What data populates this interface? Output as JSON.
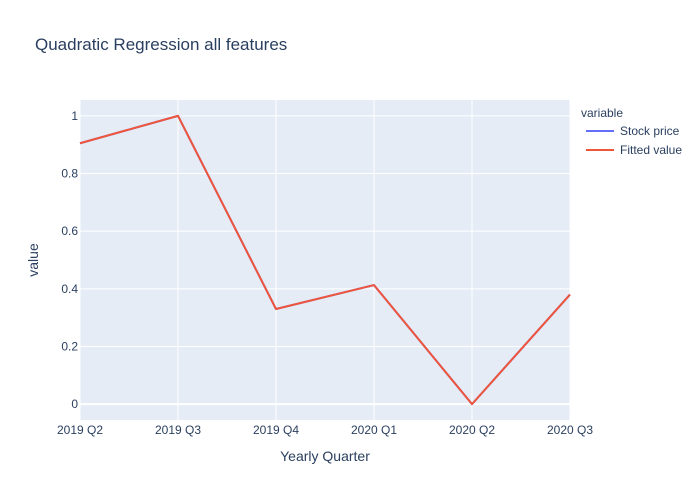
{
  "chart_data": {
    "type": "line",
    "title": "Quadratic Regression all features",
    "xlabel": "Yearly Quarter",
    "ylabel": "value",
    "categories": [
      "2019 Q2",
      "2019 Q3",
      "2019 Q4",
      "2020 Q1",
      "2020 Q2",
      "2020 Q3"
    ],
    "ylim": [
      -0.055,
      1.055
    ],
    "yticks": [
      0,
      0.2,
      0.4,
      0.6,
      0.8,
      1
    ],
    "ytick_labels": [
      "0",
      "0.2",
      "0.4",
      "0.6",
      "0.8",
      "1"
    ],
    "grid": true,
    "legend": {
      "title": "variable",
      "position": "right"
    },
    "series": [
      {
        "name": "Stock price",
        "color": "#636efa",
        "values": [
          0.905,
          1.0,
          0.33,
          0.413,
          0.0,
          0.38
        ]
      },
      {
        "name": "Fitted value",
        "color": "#EF553B",
        "values": [
          0.905,
          1.0,
          0.33,
          0.413,
          0.0,
          0.38
        ]
      }
    ],
    "plot_background": "#e5ecf6"
  }
}
